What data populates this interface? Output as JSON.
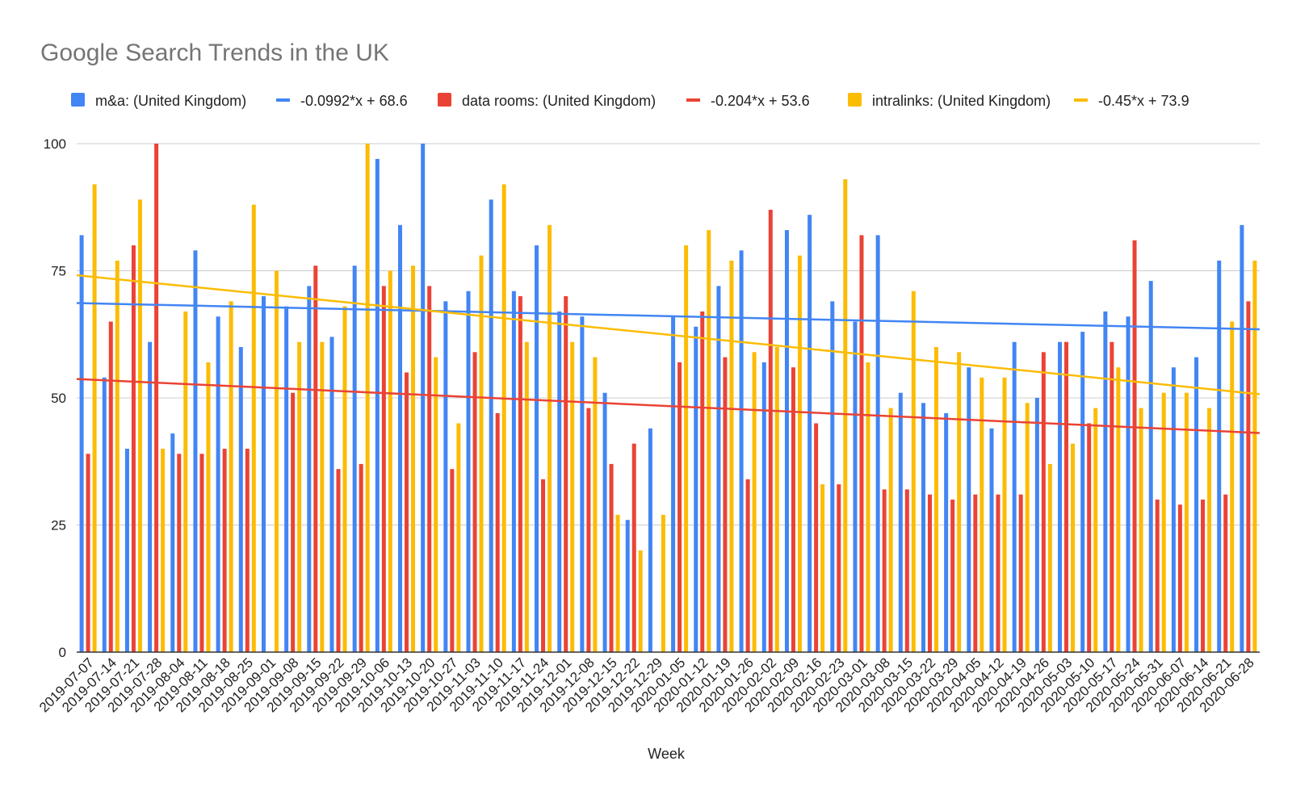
{
  "colors": {
    "ma": "#4285f4",
    "data_rooms": "#ea4335",
    "intralinks": "#fbbc04",
    "grid": "#cccccc",
    "axis": "#333333"
  },
  "chart_data": {
    "type": "bar",
    "title": "Google Search Trends in the UK",
    "xlabel": "Week",
    "ylabel": "",
    "ylim": [
      0,
      100
    ],
    "yticks": [
      0,
      25,
      50,
      75,
      100
    ],
    "grid": true,
    "legend_position": "top",
    "categories": [
      "2019-07-07",
      "2019-07-14",
      "2019-07-21",
      "2019-07-28",
      "2019-08-04",
      "2019-08-11",
      "2019-08-18",
      "2019-08-25",
      "2019-09-01",
      "2019-09-08",
      "2019-09-15",
      "2019-09-22",
      "2019-09-29",
      "2019-10-06",
      "2019-10-13",
      "2019-10-20",
      "2019-10-27",
      "2019-11-03",
      "2019-11-10",
      "2019-11-17",
      "2019-11-24",
      "2019-12-01",
      "2019-12-08",
      "2019-12-15",
      "2019-12-22",
      "2019-12-29",
      "2020-01-05",
      "2020-01-12",
      "2020-01-19",
      "2020-01-26",
      "2020-02-02",
      "2020-02-09",
      "2020-02-16",
      "2020-02-23",
      "2020-03-01",
      "2020-03-08",
      "2020-03-15",
      "2020-03-22",
      "2020-03-29",
      "2020-04-05",
      "2020-04-12",
      "2020-04-19",
      "2020-04-26",
      "2020-05-03",
      "2020-05-10",
      "2020-05-17",
      "2020-05-24",
      "2020-05-31",
      "2020-06-07",
      "2020-06-14",
      "2020-06-21",
      "2020-06-28"
    ],
    "series": [
      {
        "name": "m&a: (United Kingdom)",
        "color_key": "ma",
        "values": [
          82,
          54,
          40,
          61,
          43,
          79,
          66,
          60,
          70,
          68,
          72,
          62,
          76,
          97,
          84,
          100,
          69,
          71,
          89,
          71,
          80,
          67,
          66,
          51,
          26,
          44,
          66,
          64,
          72,
          79,
          57,
          83,
          86,
          69,
          65,
          82,
          51,
          49,
          47,
          56,
          44,
          61,
          50,
          61,
          63,
          67,
          66,
          73,
          56,
          58,
          77,
          84
        ]
      },
      {
        "name": "data rooms: (United Kingdom)",
        "color_key": "data_rooms",
        "values": [
          39,
          65,
          80,
          100,
          39,
          39,
          40,
          40,
          0,
          51,
          76,
          36,
          37,
          72,
          55,
          72,
          36,
          59,
          47,
          70,
          34,
          70,
          48,
          37,
          41,
          0,
          57,
          67,
          58,
          34,
          87,
          56,
          45,
          33,
          82,
          32,
          32,
          31,
          30,
          31,
          31,
          31,
          59,
          61,
          45,
          61,
          81,
          30,
          29,
          30,
          31,
          69
        ]
      },
      {
        "name": "intralinks: (United Kingdom)",
        "color_key": "intralinks",
        "values": [
          92,
          77,
          89,
          40,
          67,
          57,
          69,
          88,
          75,
          61,
          61,
          68,
          100,
          75,
          76,
          58,
          45,
          78,
          92,
          61,
          84,
          61,
          58,
          27,
          20,
          27,
          80,
          83,
          77,
          59,
          60,
          78,
          33,
          93,
          57,
          48,
          71,
          60,
          59,
          54,
          54,
          49,
          37,
          41,
          48,
          56,
          48,
          51,
          51,
          48,
          65,
          77
        ]
      }
    ],
    "trendlines": [
      {
        "name": "-0.0992*x + 68.6",
        "color_key": "ma",
        "slope": -0.0992,
        "intercept": 68.6
      },
      {
        "name": "-0.204*x + 53.6",
        "color_key": "data_rooms",
        "slope": -0.204,
        "intercept": 53.6
      },
      {
        "name": "-0.45*x + 73.9",
        "color_key": "intralinks",
        "slope": -0.45,
        "intercept": 73.9
      }
    ],
    "legend": [
      {
        "label": "m&a: (United Kingdom)",
        "kind": "box",
        "color_key": "ma"
      },
      {
        "label": "-0.0992*x + 68.6",
        "kind": "line",
        "color_key": "ma"
      },
      {
        "label": "data rooms: (United Kingdom)",
        "kind": "box",
        "color_key": "data_rooms"
      },
      {
        "label": "-0.204*x + 53.6",
        "kind": "line",
        "color_key": "data_rooms"
      },
      {
        "label": "intralinks: (United Kingdom)",
        "kind": "box",
        "color_key": "intralinks"
      },
      {
        "label": "-0.45*x + 73.9",
        "kind": "line",
        "color_key": "intralinks"
      }
    ]
  }
}
